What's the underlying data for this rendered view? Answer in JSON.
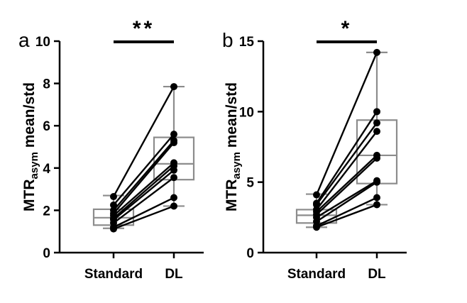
{
  "chart_data": [
    {
      "type": "box-paired",
      "panel": "a",
      "ylabel": "MTR",
      "ylabel_sub": "asym",
      "ylabel_rest": " mean/std",
      "ylim": [
        0,
        10
      ],
      "yticks": [
        0,
        2,
        4,
        6,
        8,
        10
      ],
      "ytick_labels": [
        "0",
        "2",
        "4",
        "6",
        "8",
        "10"
      ],
      "categories": [
        "Standard",
        "DL"
      ],
      "significance": "**",
      "box": {
        "Standard": {
          "min": 1.15,
          "q1": 1.3,
          "median": 1.65,
          "q3": 2.05,
          "max": 2.7
        },
        "DL": {
          "min": 2.2,
          "q1": 3.45,
          "median": 4.2,
          "q3": 5.45,
          "max": 7.85
        }
      },
      "pairs": [
        [
          1.12,
          2.2
        ],
        [
          1.2,
          2.6
        ],
        [
          1.4,
          3.55
        ],
        [
          1.55,
          3.9
        ],
        [
          1.62,
          4.1
        ],
        [
          1.75,
          4.25
        ],
        [
          1.85,
          5.2
        ],
        [
          2.0,
          5.3
        ],
        [
          2.25,
          5.6
        ],
        [
          2.65,
          7.85
        ]
      ]
    },
    {
      "type": "box-paired",
      "panel": "b",
      "ylabel": "MTR",
      "ylabel_sub": "asym",
      "ylabel_rest": " mean/std",
      "ylim": [
        0,
        15
      ],
      "yticks": [
        0,
        5,
        10,
        15
      ],
      "ytick_labels": [
        "0",
        "5",
        "10",
        "15"
      ],
      "categories": [
        "Standard",
        "DL"
      ],
      "significance": "*",
      "box": {
        "Standard": {
          "min": 1.8,
          "q1": 2.1,
          "median": 2.65,
          "q3": 3.05,
          "max": 4.15
        },
        "DL": {
          "min": 3.4,
          "q1": 4.9,
          "median": 6.9,
          "q3": 9.4,
          "max": 14.2
        }
      },
      "pairs": [
        [
          1.8,
          3.4
        ],
        [
          1.9,
          3.9
        ],
        [
          2.2,
          5.0
        ],
        [
          2.5,
          5.1
        ],
        [
          2.7,
          6.7
        ],
        [
          2.9,
          6.9
        ],
        [
          3.05,
          8.6
        ],
        [
          3.4,
          9.2
        ],
        [
          3.5,
          10.0
        ],
        [
          4.1,
          14.2
        ]
      ]
    }
  ]
}
